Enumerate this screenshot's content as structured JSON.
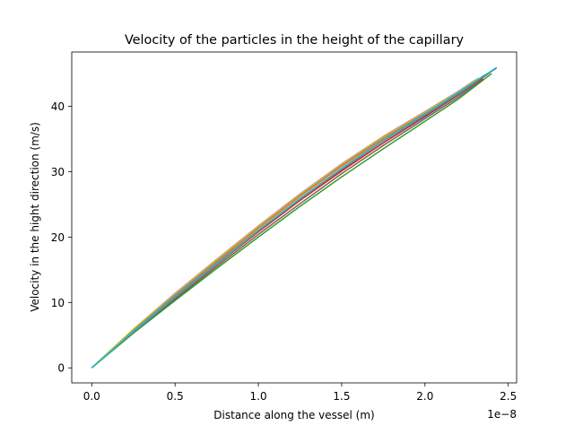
{
  "chart_data": {
    "type": "line",
    "title": "Velocity of the particles in the height of the capillary",
    "xlabel": "Distance along the vessel (m)",
    "ylabel": "Velocity in the hight direction (m/s)",
    "x_offset_label": "1e−8",
    "x_scale": 1e-08,
    "xlim": [
      -0.12,
      2.55
    ],
    "ylim": [
      -2.3,
      48.3
    ],
    "x_ticks": [
      0.0,
      0.5,
      1.0,
      1.5,
      2.0,
      2.5
    ],
    "x_tick_labels": [
      "0.0",
      "0.5",
      "1.0",
      "1.5",
      "2.0",
      "2.5"
    ],
    "y_ticks": [
      0,
      10,
      20,
      30,
      40
    ],
    "y_tick_labels": [
      "0",
      "10",
      "20",
      "30",
      "40"
    ],
    "grid": false,
    "legend": "none",
    "series": [
      {
        "color": "#1f77b4",
        "values": [
          [
            0,
            0
          ],
          [
            0.25,
            5.6
          ],
          [
            0.5,
            10.8
          ],
          [
            0.75,
            15.9
          ],
          [
            1.0,
            20.8
          ],
          [
            1.25,
            25.6
          ],
          [
            1.5,
            30.2
          ],
          [
            1.75,
            34.4
          ],
          [
            2.0,
            38.4
          ],
          [
            2.2,
            41.7
          ],
          [
            2.43,
            45.9
          ]
        ]
      },
      {
        "color": "#ff7f0e",
        "values": [
          [
            0,
            0
          ],
          [
            0.25,
            5.7
          ],
          [
            0.5,
            11.0
          ],
          [
            0.75,
            16.2
          ],
          [
            1.0,
            21.3
          ],
          [
            1.25,
            26.2
          ],
          [
            1.5,
            30.8
          ],
          [
            1.75,
            35.0
          ],
          [
            2.0,
            38.9
          ],
          [
            2.2,
            42.0
          ],
          [
            2.4,
            45.4
          ]
        ]
      },
      {
        "color": "#2ca02c",
        "values": [
          [
            0,
            0
          ],
          [
            0.25,
            5.3
          ],
          [
            0.5,
            10.3
          ],
          [
            0.75,
            15.2
          ],
          [
            1.0,
            20.0
          ],
          [
            1.25,
            24.7
          ],
          [
            1.5,
            29.2
          ],
          [
            1.75,
            33.5
          ],
          [
            2.0,
            37.7
          ],
          [
            2.2,
            41.1
          ],
          [
            2.4,
            45.0
          ]
        ]
      },
      {
        "color": "#d62728",
        "values": [
          [
            0,
            0
          ],
          [
            0.25,
            5.5
          ],
          [
            0.5,
            10.7
          ],
          [
            0.75,
            15.8
          ],
          [
            1.0,
            20.8
          ],
          [
            1.25,
            25.6
          ],
          [
            1.5,
            30.1
          ],
          [
            1.75,
            34.4
          ],
          [
            2.0,
            38.5
          ],
          [
            2.2,
            41.8
          ],
          [
            2.38,
            45.0
          ]
        ]
      },
      {
        "color": "#9467bd",
        "values": [
          [
            0,
            0
          ],
          [
            0.25,
            5.8
          ],
          [
            0.5,
            11.2
          ],
          [
            0.75,
            16.4
          ],
          [
            1.0,
            21.5
          ],
          [
            1.25,
            26.4
          ],
          [
            1.5,
            31.0
          ],
          [
            1.75,
            35.2
          ],
          [
            2.0,
            39.0
          ],
          [
            2.2,
            42.1
          ],
          [
            2.36,
            44.8
          ]
        ]
      },
      {
        "color": "#8c564b",
        "values": [
          [
            0,
            0
          ],
          [
            0.25,
            5.4
          ],
          [
            0.5,
            10.5
          ],
          [
            0.75,
            15.5
          ],
          [
            1.0,
            20.4
          ],
          [
            1.25,
            25.1
          ],
          [
            1.5,
            29.7
          ],
          [
            1.75,
            34.0
          ],
          [
            2.0,
            38.1
          ],
          [
            2.2,
            41.4
          ],
          [
            2.35,
            44.2
          ]
        ]
      },
      {
        "color": "#e377c2",
        "values": [
          [
            0,
            0
          ],
          [
            0.25,
            5.9
          ],
          [
            0.5,
            11.4
          ],
          [
            0.75,
            16.6
          ],
          [
            1.0,
            21.7
          ],
          [
            1.25,
            26.6
          ],
          [
            1.5,
            31.2
          ],
          [
            1.75,
            35.4
          ],
          [
            2.0,
            39.2
          ],
          [
            2.2,
            42.3
          ],
          [
            2.3,
            44.0
          ]
        ]
      },
      {
        "color": "#7f7f7f",
        "values": [
          [
            0,
            0
          ],
          [
            0.25,
            5.6
          ],
          [
            0.5,
            10.9
          ],
          [
            0.75,
            16.0
          ],
          [
            1.0,
            21.0
          ],
          [
            1.25,
            25.8
          ],
          [
            1.5,
            30.4
          ],
          [
            1.75,
            34.7
          ],
          [
            2.0,
            38.7
          ],
          [
            2.2,
            41.9
          ],
          [
            2.33,
            44.2
          ]
        ]
      },
      {
        "color": "#bcbd22",
        "values": [
          [
            0,
            0
          ],
          [
            0.25,
            5.9
          ],
          [
            0.5,
            11.3
          ],
          [
            0.75,
            16.5
          ],
          [
            1.0,
            21.6
          ],
          [
            1.25,
            26.5
          ],
          [
            1.5,
            31.1
          ],
          [
            1.75,
            35.3
          ],
          [
            2.0,
            39.1
          ],
          [
            2.2,
            42.2
          ],
          [
            2.32,
            44.3
          ]
        ]
      },
      {
        "color": "#17becf",
        "values": [
          [
            0,
            0
          ],
          [
            0.25,
            5.5
          ],
          [
            0.5,
            10.8
          ],
          [
            0.75,
            15.9
          ],
          [
            1.0,
            21.0
          ],
          [
            1.25,
            25.9
          ],
          [
            1.5,
            30.5
          ],
          [
            1.75,
            34.8
          ],
          [
            2.0,
            38.8
          ],
          [
            2.2,
            42.1
          ],
          [
            2.41,
            45.6
          ]
        ]
      }
    ]
  }
}
